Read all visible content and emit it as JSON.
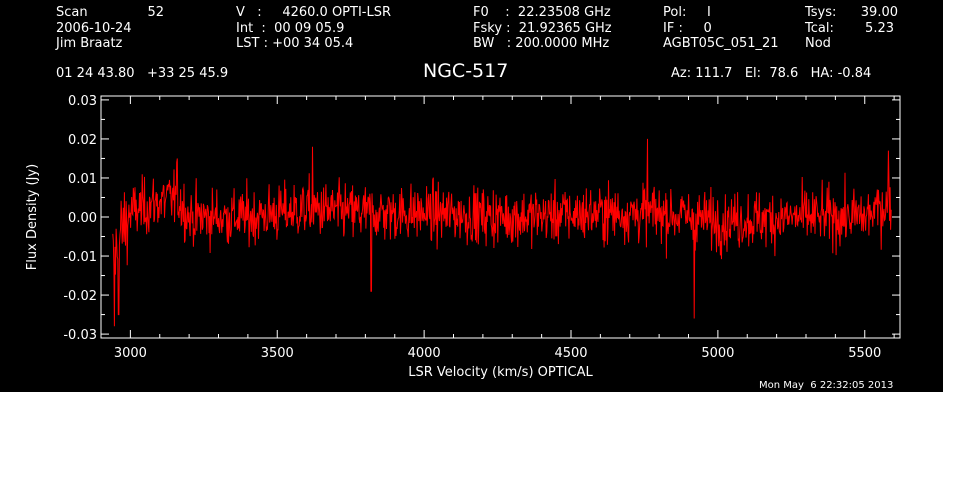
{
  "header": {
    "scan_label": "Scan",
    "scan_value": "52",
    "date": "2006-10-24",
    "observer": "Jim Braatz",
    "velocity": "V   :     4260.0 OPTI-LSR",
    "int_time": "Int  :  00 09 05.9",
    "lst": "LST : +00 34 05.4",
    "f0": "F0    :  22.23508 GHz",
    "fsky": "Fsky :  21.92365 GHz",
    "bw": "BW   : 200.0000 MHz",
    "pol": "Pol:     I",
    "if": "IF :     0",
    "session": "AGBT05C_051_21",
    "tsys_label": "Tsys:",
    "tsys_value": "39.00",
    "tcal_label": "Tcal:",
    "tcal_value": "5.23",
    "procedure": "Nod",
    "coords": "01 24 43.80   +33 25 45.9",
    "pointing": "Az: 111.7   El:  78.6   HA: -0.84",
    "footer_timestamp": "Mon May  6 22:32:05 2013"
  },
  "chart_data": {
    "type": "line",
    "title": "NGC-517",
    "xlabel": "LSR Velocity (km/s) OPTICAL",
    "ylabel": "Flux Density (Jy)",
    "xlim": [
      2900,
      5620
    ],
    "ylim": [
      -0.031,
      0.031
    ],
    "x_ticks": [
      3000,
      3500,
      4000,
      4500,
      5000,
      5500
    ],
    "x_tick_labels": [
      "3000",
      "3500",
      "4000",
      "4500",
      "5000",
      "5500"
    ],
    "y_ticks": [
      -0.03,
      -0.02,
      -0.01,
      0.0,
      0.01,
      0.02,
      0.03
    ],
    "y_tick_labels": [
      "-0.03",
      "-0.02",
      "-0.01",
      "0.00",
      "0.01",
      "0.02",
      "0.03"
    ],
    "grid": false,
    "series": [
      {
        "color": "#ff0000",
        "x_start": 2940,
        "x_end": 5590,
        "n_points": 1400,
        "noise_rms": 0.0045,
        "baseline_shape": [
          [
            2940,
            -0.012
          ],
          [
            2970,
            -0.004
          ],
          [
            3000,
            0.001
          ],
          [
            3100,
            0.004
          ],
          [
            3160,
            0.005
          ],
          [
            3200,
            0.0
          ],
          [
            3400,
            0.0
          ],
          [
            3600,
            0.002
          ],
          [
            3800,
            0.001
          ],
          [
            4000,
            0.001
          ],
          [
            4300,
            0.0
          ],
          [
            4600,
            0.001
          ],
          [
            4800,
            0.001
          ],
          [
            5000,
            -0.001
          ],
          [
            5300,
            0.0
          ],
          [
            5500,
            0.0
          ],
          [
            5590,
            0.004
          ]
        ],
        "notable_features": [
          [
            2945,
            -0.028
          ],
          [
            2960,
            -0.025
          ],
          [
            3160,
            0.015
          ],
          [
            3620,
            0.018
          ],
          [
            3820,
            -0.019
          ],
          [
            4760,
            0.02
          ],
          [
            4920,
            -0.026
          ],
          [
            5580,
            0.017
          ]
        ]
      }
    ]
  }
}
